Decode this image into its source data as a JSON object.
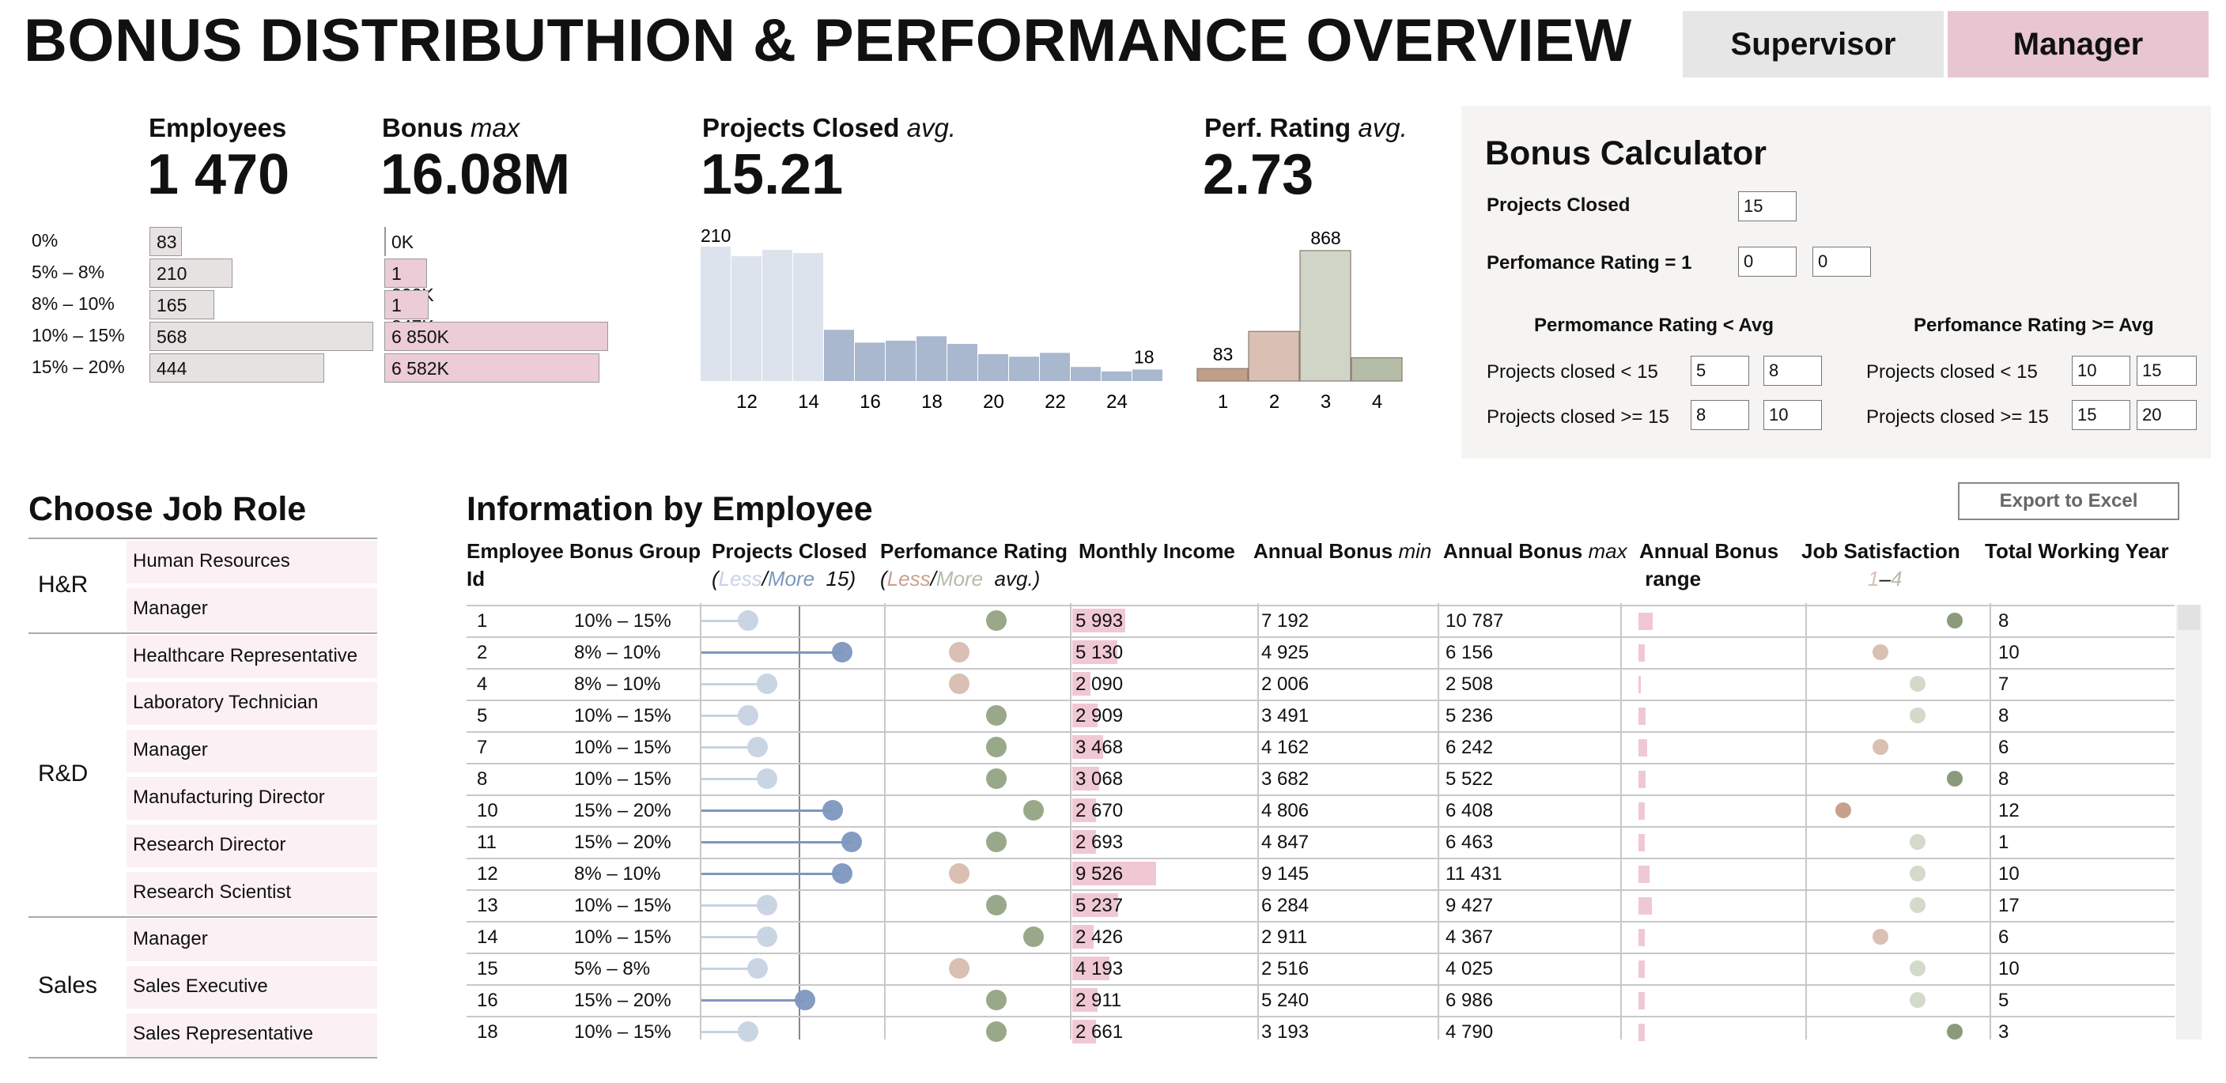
{
  "title": "BONUS DISTRIBUTHION & PERFORMANCE OVERVIEW",
  "tabs": {
    "supervisor": "Supervisor",
    "manager": "Manager"
  },
  "kpi": {
    "employees": {
      "label": "Employees",
      "value": "1 470"
    },
    "bonus": {
      "label": "Bonus",
      "label_suffix": "max",
      "value": "16.08M"
    },
    "projects": {
      "label": "Projects Closed",
      "label_suffix": "avg.",
      "value": "15.21"
    },
    "perf": {
      "label": "Perf. Rating",
      "label_suffix": "avg.",
      "value": "2.73"
    }
  },
  "bonus_groups": [
    {
      "label": "0%",
      "employees": 83,
      "employees_text": "83",
      "bonus_k": 0,
      "bonus_text": "0K"
    },
    {
      "label": "5% – 8%",
      "employees": 210,
      "employees_text": "210",
      "bonus_k": 1302,
      "bonus_text": "1 302K"
    },
    {
      "label": "8% – 10%",
      "employees": 165,
      "employees_text": "165",
      "bonus_k": 1347,
      "bonus_text": "1 347K"
    },
    {
      "label": "10% – 15%",
      "employees": 568,
      "employees_text": "568",
      "bonus_k": 6850,
      "bonus_text": "6 850K"
    },
    {
      "label": "15% – 20%",
      "employees": 444,
      "employees_text": "444",
      "bonus_k": 6582,
      "bonus_text": "6 582K"
    }
  ],
  "chart_data": [
    {
      "type": "bar",
      "categories": [
        "0%",
        "5% – 8%",
        "8% – 10%",
        "10% – 15%",
        "15% – 20%"
      ],
      "values": [
        83,
        210,
        165,
        568,
        444
      ],
      "title": "Employees"
    },
    {
      "type": "bar",
      "categories": [
        "0%",
        "5% – 8%",
        "8% – 10%",
        "10% – 15%",
        "15% – 20%"
      ],
      "values": [
        0,
        1302,
        1347,
        6850,
        6582
      ],
      "title": "Bonus max"
    },
    {
      "type": "bar",
      "title": "Projects Closed avg.",
      "x": [
        11,
        12,
        13,
        14,
        15,
        16,
        17,
        18,
        19,
        20,
        21,
        22,
        23,
        24,
        25
      ],
      "values": [
        210,
        195,
        205,
        200,
        80,
        60,
        63,
        70,
        58,
        42,
        38,
        44,
        22,
        15,
        18
      ],
      "tick_labels": [
        "12",
        "14",
        "16",
        "18",
        "20",
        "22",
        "24"
      ],
      "data_labels": {
        "first": "210",
        "last": "18"
      },
      "colors": [
        "#dce3ec",
        "#dce3ec",
        "#dce3ec",
        "#dce3ec",
        "#a9b8cf",
        "#a9b8cf",
        "#a9b8cf",
        "#a9b8cf",
        "#a9b8cf",
        "#a9b8cf",
        "#a9b8cf",
        "#a9b8cf",
        "#a9b8cf",
        "#a9b8cf",
        "#a9b8cf"
      ]
    },
    {
      "type": "bar",
      "title": "Perf. Rating avg.",
      "categories": [
        "1",
        "2",
        "3",
        "4"
      ],
      "values": [
        83,
        330,
        868,
        155
      ],
      "data_labels": {
        "first": "83",
        "peak": "868"
      },
      "colors": [
        "#c19f87",
        "#d9c0b2",
        "#d1d5c8",
        "#b5bca8"
      ]
    }
  ],
  "perf_chart": {
    "labels": {
      "first": "83",
      "peak": "868"
    }
  },
  "calculator": {
    "title": "Bonus Calculator",
    "projects_closed_label": "Projects Closed",
    "projects_closed_value": "15",
    "perf_rating_label": "Perfomance Rating = 1",
    "perf_rating_v1": "0",
    "perf_rating_v2": "0",
    "less_avg_title": "Permomance Rating < Avg",
    "ge_avg_title": "Perfomance Rating >= Avg",
    "row1_label": "Projects closed < 15",
    "row2_label": "Projects closed >= 15",
    "less": {
      "r1a": "5",
      "r1b": "8",
      "r2a": "8",
      "r2b": "10"
    },
    "ge": {
      "r1a": "10",
      "r1b": "15",
      "r2a": "15",
      "r2b": "20"
    }
  },
  "job_role": {
    "title": "Choose Job Role",
    "groups": [
      {
        "name": "H&R",
        "roles": [
          "Human Resources",
          "Manager"
        ]
      },
      {
        "name": "R&D",
        "roles": [
          "Healthcare Representative",
          "Laboratory Technician",
          "Manager",
          "Manufacturing Director",
          "Research Director",
          "Research Scientist"
        ]
      },
      {
        "name": "Sales",
        "roles": [
          "Manager",
          "Sales Executive",
          "Sales Representative"
        ]
      }
    ]
  },
  "table": {
    "title": "Information by Employee",
    "export_label": "Export to Excel",
    "headers": {
      "id1": "Employee",
      "id2": "Id",
      "group": "Bonus Group",
      "projects": "Projects Closed",
      "projects_less": "Less",
      "projects_more": "More",
      "projects_n": "15)",
      "perf": "Perfomance Rating",
      "perf_less": "Less",
      "perf_more": "More",
      "perf_avg": "avg.)",
      "income": "Monthly Income",
      "bmin": "Annual Bonus",
      "bmin_s": "min",
      "bmax": "Annual Bonus",
      "bmax_s": "max",
      "range1": "Annual Bonus",
      "range2": "range",
      "sat": "Job Satisfaction",
      "sat_lo": "1",
      "sat_hi": "4",
      "years": "Total Working Year"
    },
    "rows": [
      {
        "id": "1",
        "group": "10% – 15%",
        "projects": 13,
        "perf": 3,
        "income": "5 993",
        "income_v": 5993,
        "bmin": "7 192",
        "bmax": "10 787",
        "range": 0.6,
        "sat": 4,
        "years": "8"
      },
      {
        "id": "2",
        "group": "8% – 10%",
        "projects": 23,
        "perf": 2,
        "income": "5 130",
        "income_v": 5130,
        "bmin": "4 925",
        "bmax": "6 156",
        "range": 0.25,
        "sat": 2,
        "years": "10"
      },
      {
        "id": "4",
        "group": "8% – 10%",
        "projects": 15,
        "perf": 2,
        "income": "2 090",
        "income_v": 2090,
        "bmin": "2 006",
        "bmax": "2 508",
        "range": 0.1,
        "sat": 3,
        "years": "7"
      },
      {
        "id": "5",
        "group": "10% – 15%",
        "projects": 13,
        "perf": 3,
        "income": "2 909",
        "income_v": 2909,
        "bmin": "3 491",
        "bmax": "5 236",
        "range": 0.3,
        "sat": 3,
        "years": "8"
      },
      {
        "id": "7",
        "group": "10% – 15%",
        "projects": 14,
        "perf": 3,
        "income": "3 468",
        "income_v": 3468,
        "bmin": "4 162",
        "bmax": "6 242",
        "range": 0.35,
        "sat": 2,
        "years": "6"
      },
      {
        "id": "8",
        "group": "10% – 15%",
        "projects": 15,
        "perf": 3,
        "income": "3 068",
        "income_v": 3068,
        "bmin": "3 682",
        "bmax": "5 522",
        "range": 0.3,
        "sat": 4,
        "years": "8"
      },
      {
        "id": "10",
        "group": "15% – 20%",
        "projects": 22,
        "perf": 4,
        "income": "2 670",
        "income_v": 2670,
        "bmin": "4 806",
        "bmax": "6 408",
        "range": 0.28,
        "sat": 1,
        "years": "12"
      },
      {
        "id": "11",
        "group": "15% – 20%",
        "projects": 24,
        "perf": 3,
        "income": "2 693",
        "income_v": 2693,
        "bmin": "4 847",
        "bmax": "6 463",
        "range": 0.28,
        "sat": 3,
        "years": "1"
      },
      {
        "id": "12",
        "group": "8% – 10%",
        "projects": 23,
        "perf": 2,
        "income": "9 526",
        "income_v": 9526,
        "bmin": "9 145",
        "bmax": "11 431",
        "range": 0.45,
        "sat": 3,
        "years": "10"
      },
      {
        "id": "13",
        "group": "10% – 15%",
        "projects": 15,
        "perf": 3,
        "income": "5 237",
        "income_v": 5237,
        "bmin": "6 284",
        "bmax": "9 427",
        "range": 0.55,
        "sat": 3,
        "years": "17"
      },
      {
        "id": "14",
        "group": "10% – 15%",
        "projects": 15,
        "perf": 4,
        "income": "2 426",
        "income_v": 2426,
        "bmin": "2 911",
        "bmax": "4 367",
        "range": 0.25,
        "sat": 2,
        "years": "6"
      },
      {
        "id": "15",
        "group": "5% – 8%",
        "projects": 14,
        "perf": 2,
        "income": "4 193",
        "income_v": 4193,
        "bmin": "2 516",
        "bmax": "4 025",
        "range": 0.25,
        "sat": 3,
        "years": "10"
      },
      {
        "id": "16",
        "group": "15% – 20%",
        "projects": 19,
        "perf": 3,
        "income": "2 911",
        "income_v": 2911,
        "bmin": "5 240",
        "bmax": "6 986",
        "range": 0.28,
        "sat": 3,
        "years": "5"
      },
      {
        "id": "18",
        "group": "10% – 15%",
        "projects": 13,
        "perf": 3,
        "income": "2 661",
        "income_v": 2661,
        "bmin": "3 193",
        "bmax": "4 790",
        "range": 0.28,
        "sat": 4,
        "years": "3"
      }
    ]
  },
  "colors": {
    "manager_tab": "#e7c6d2",
    "supervisor_tab": "#e6e6e6",
    "less_blue": "#c7d3e3",
    "more_blue": "#7d97bf",
    "perf_green": "#9aa88a",
    "perf_brown": "#d9c0b2",
    "income_pink": "#f0c8d4",
    "sat_dark": "#8a9a7a",
    "sat_light": "#d3dac9",
    "sat_brown": "#c8a18c"
  }
}
